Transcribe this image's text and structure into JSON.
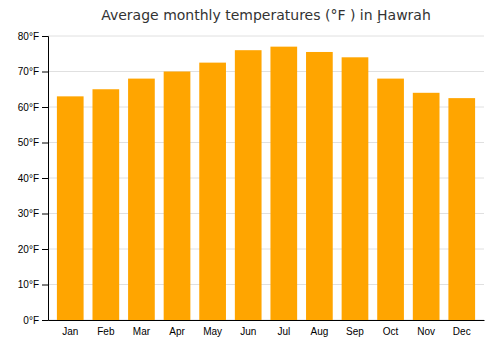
{
  "chart_data": {
    "type": "bar",
    "title": "Average monthly temperatures (°F ) in Ḩawrah",
    "categories": [
      "Jan",
      "Feb",
      "Mar",
      "Apr",
      "May",
      "Jun",
      "Jul",
      "Aug",
      "Sep",
      "Oct",
      "Nov",
      "Dec"
    ],
    "values": [
      63,
      65,
      68,
      70,
      72.5,
      76,
      77,
      75.5,
      74,
      68,
      64,
      62.5
    ],
    "color": "#FFA500",
    "ylim": [
      0,
      80
    ],
    "yticks": [
      {
        "value": 0,
        "label": "0°F"
      },
      {
        "value": 10,
        "label": "10°F"
      },
      {
        "value": 20,
        "label": "20°F"
      },
      {
        "value": 30,
        "label": "30°F"
      },
      {
        "value": 40,
        "label": "40°F"
      },
      {
        "value": 50,
        "label": "50°F"
      },
      {
        "value": 60,
        "label": "60°F"
      },
      {
        "value": 70,
        "label": "70°F"
      },
      {
        "value": 80,
        "label": "80°F"
      }
    ],
    "grid": true
  }
}
